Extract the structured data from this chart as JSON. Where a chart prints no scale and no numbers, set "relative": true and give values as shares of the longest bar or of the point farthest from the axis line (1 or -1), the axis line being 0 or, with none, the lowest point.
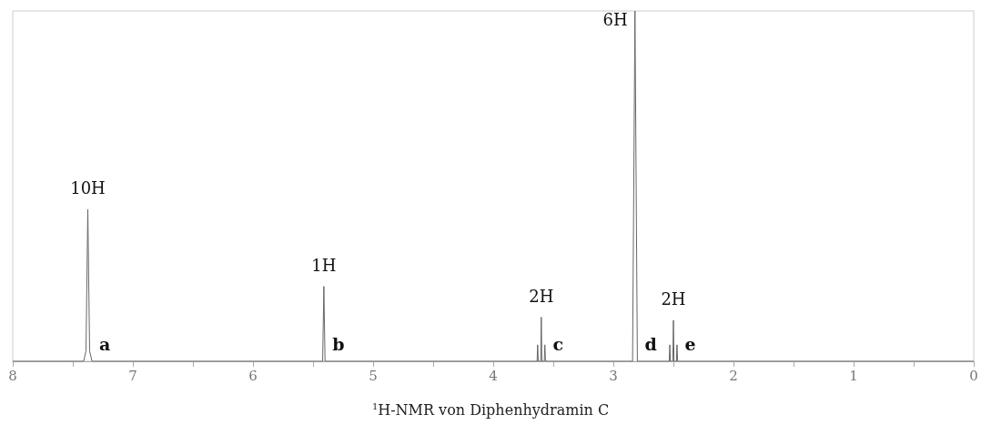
{
  "chart_data": {
    "type": "line",
    "title": "$^{1}$H-NMR von Diphenhydramin C",
    "relative": true,
    "xlim": [
      8,
      0
    ],
    "xticks": [
      8,
      {
        "value": 7.5,
        "label": null
      },
      7,
      {
        "value": 6.5,
        "label": null
      },
      6,
      {
        "value": 5.5,
        "label": null
      },
      5,
      {
        "value": 4.5,
        "label": null
      },
      4,
      {
        "value": 3.5,
        "label": null
      },
      3,
      {
        "value": 2.5,
        "label": null
      },
      2,
      {
        "value": 1.5,
        "label": null
      },
      1,
      {
        "value": 0.5,
        "label": null
      },
      0
    ],
    "series": [
      {
        "color": "#666666",
        "x": [
          8,
          7.41,
          7.39,
          7.375,
          7.36,
          7.34,
          5.42,
          5.41,
          5.4,
          3.635,
          3.63,
          3.625,
          3.605,
          3.6,
          3.595,
          3.575,
          3.57,
          3.565,
          2.84,
          2.82,
          2.8,
          2.535,
          2.53,
          2.525,
          2.505,
          2.5,
          2.495,
          2.475,
          2.47,
          2.465,
          0
        ],
        "values": [
          0,
          0,
          0.03,
          0.434,
          0.03,
          0,
          0,
          0.214,
          0,
          0,
          0.047,
          0,
          0,
          0.126,
          0,
          0,
          0.047,
          0,
          0,
          1,
          0,
          0,
          0.047,
          0,
          0,
          0.117,
          0,
          0,
          0.047,
          0,
          0
        ]
      }
    ],
    "annotations": [
      {
        "text": "10H",
        "x": 7.375,
        "y": 0.434
      },
      {
        "text": "1H",
        "x": 5.41,
        "y": 0.214
      },
      {
        "text": "2H",
        "x": 3.6,
        "y": 0.126
      },
      {
        "text": "6H",
        "x": 2.82,
        "y": 1
      },
      {
        "text": "2H",
        "x": 2.5,
        "y": 0.117
      },
      {
        "text": "a",
        "x": 7.34,
        "y": 0
      },
      {
        "text": "b",
        "x": 5.4,
        "y": 0
      },
      {
        "text": "c",
        "x": 3.565,
        "y": 0
      },
      {
        "text": "d",
        "x": 2.8,
        "y": 0
      },
      {
        "text": "e",
        "x": 2.465,
        "y": 0
      }
    ]
  }
}
